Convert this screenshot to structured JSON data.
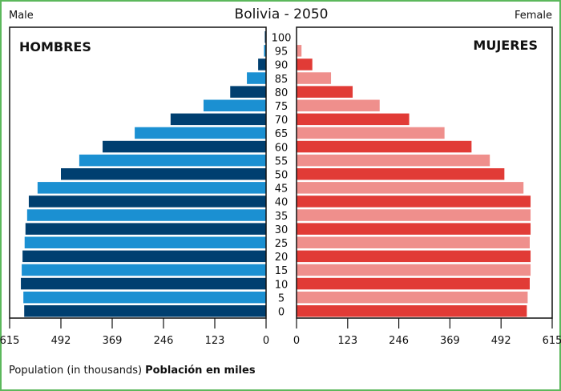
{
  "chart_data": {
    "type": "bar",
    "subtype": "population-pyramid",
    "title": "Bolivia - 2050",
    "left_label": "Male",
    "right_label": "Female",
    "left_panel_label": "HOMBRES",
    "right_panel_label": "MUJERES",
    "xlabel": "Population (in thousands)",
    "xlabel_bold": "Población en miles",
    "xlim": [
      0,
      615
    ],
    "xticks": [
      0,
      123,
      246,
      369,
      492,
      615
    ],
    "categories": [
      "100",
      "95",
      "90",
      "85",
      "80",
      "75",
      "70",
      "65",
      "60",
      "55",
      "50",
      "45",
      "40",
      "35",
      "30",
      "25",
      "20",
      "15",
      "10",
      "5",
      "0"
    ],
    "series": [
      {
        "name": "Male",
        "colors": [
          "#003f70",
          "#1b90d2"
        ],
        "values": [
          3,
          5,
          19,
          46,
          86,
          150,
          229,
          315,
          392,
          448,
          492,
          548,
          569,
          573,
          577,
          579,
          584,
          586,
          588,
          582,
          580
        ]
      },
      {
        "name": "Female",
        "colors": [
          "#e13b36",
          "#ef8f8c"
        ],
        "values": [
          1,
          12,
          38,
          83,
          135,
          200,
          271,
          356,
          421,
          465,
          500,
          546,
          563,
          563,
          563,
          561,
          563,
          563,
          561,
          556,
          554
        ]
      }
    ]
  }
}
